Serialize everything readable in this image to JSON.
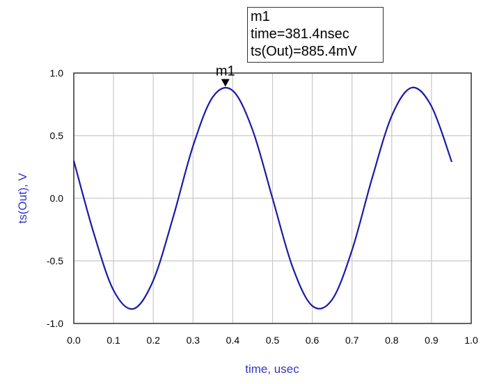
{
  "chart_data": {
    "type": "line",
    "title": "",
    "xlabel": "time, usec",
    "ylabel": "ts(Out), V",
    "xlim": [
      0.0,
      1.0
    ],
    "ylim": [
      -1.0,
      1.0
    ],
    "grid": true,
    "x_ticks": [
      "0.0",
      "0.1",
      "0.2",
      "0.3",
      "0.4",
      "0.5",
      "0.6",
      "0.7",
      "0.8",
      "0.9",
      "1.0"
    ],
    "y_ticks": [
      "1.0",
      "0.5",
      "0.0",
      "-0.5",
      "-1.0"
    ],
    "series": [
      {
        "name": "ts(Out)",
        "color": "#1a1aa6",
        "x": [
          0,
          0.05,
          0.1,
          0.15,
          0.2,
          0.25,
          0.3,
          0.35,
          0.4,
          0.45,
          0.5,
          0.55,
          0.6,
          0.65,
          0.7,
          0.75,
          0.8,
          0.85,
          0.9,
          0.951
        ],
        "y": [
          0.3,
          -0.276,
          -0.735,
          -0.883,
          -0.656,
          -0.151,
          0.417,
          0.81,
          0.859,
          0.544,
          0.0,
          -0.545,
          -0.859,
          -0.809,
          -0.415,
          0.154,
          0.658,
          0.883,
          0.734,
          0.29
        ],
        "model": {
          "amplitude": 0.8854,
          "frequency_mhz": 2.111,
          "phase_rad": 2.796
        }
      }
    ],
    "marker": {
      "name": "m1",
      "x": 0.3814,
      "y": 0.8854,
      "lines": [
        "m1",
        "time=381.4nsec",
        "ts(Out)=885.4mV"
      ]
    }
  }
}
